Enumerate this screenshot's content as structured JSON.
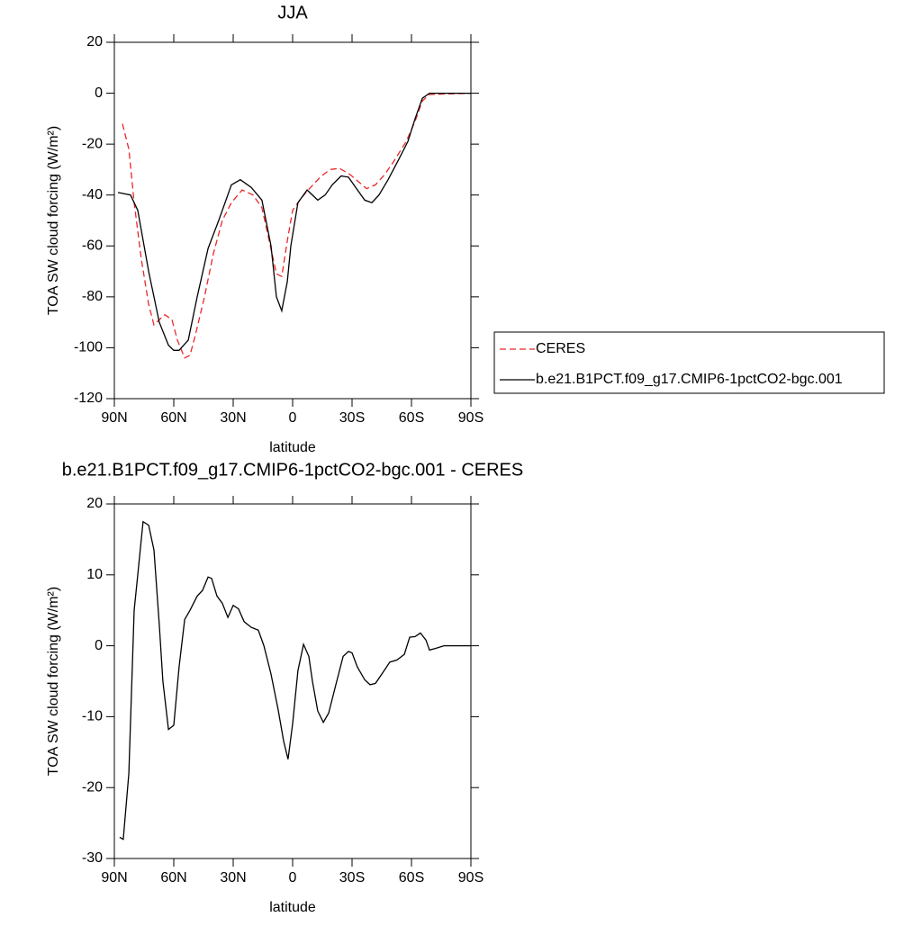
{
  "chart_data": [
    {
      "type": "line",
      "title": "JJA",
      "xlabel": "latitude",
      "ylabel": "TOA SW cloud forcing (W/m²)",
      "xlim": [
        90,
        -90
      ],
      "ylim": [
        -120,
        20
      ],
      "xticks": [
        {
          "value": 90,
          "label": "90N"
        },
        {
          "value": 60,
          "label": "60N"
        },
        {
          "value": 30,
          "label": "30N"
        },
        0,
        {
          "value": -30,
          "label": "30S"
        },
        {
          "value": -60,
          "label": "60S"
        },
        {
          "value": -90,
          "label": "90S"
        }
      ],
      "yticks": [
        20,
        0,
        -20,
        -40,
        -60,
        -80,
        -100,
        -120
      ],
      "legend": "right",
      "series": [
        {
          "name": "CERES",
          "color": "#e8282a",
          "dash": true,
          "x": [
            85.9,
            82.7,
            80,
            76.4,
            72.7,
            70,
            67.3,
            64.5,
            60.9,
            58.2,
            54.5,
            51.8,
            49.1,
            44.5,
            40,
            35.5,
            30.9,
            25.5,
            20,
            15.5,
            11.8,
            8.2,
            5.5,
            2.7,
            0,
            -4.5,
            -9.1,
            -14.5,
            -19.1,
            -23.6,
            -29.1,
            -33.6,
            -37.3,
            -41.8,
            -46.4,
            -50.9,
            -57.3,
            -61.8,
            -65.5,
            -69.1,
            -90
          ],
          "values": [
            -12,
            -22,
            -43,
            -65,
            -83,
            -91,
            -89,
            -87,
            -89,
            -97,
            -104,
            -103,
            -95,
            -80,
            -63,
            -50,
            -43,
            -38,
            -40,
            -45,
            -58,
            -71,
            -72,
            -58,
            -46,
            -41,
            -37,
            -32.5,
            -30,
            -29.5,
            -32,
            -35,
            -37.5,
            -36,
            -32,
            -27,
            -19,
            -11,
            -3,
            -0.5,
            0
          ]
        },
        {
          "name": "b.e21.B1PCT.f09_g17.CMIP6-1pctCO2-bgc.001",
          "color": "#000000",
          "dash": false,
          "x": [
            88.2,
            81.8,
            78.2,
            72.7,
            67.3,
            62.7,
            60,
            57.3,
            52.7,
            48.2,
            42.7,
            37.3,
            30.9,
            26.4,
            20.9,
            15.5,
            10.9,
            8.2,
            5.5,
            2.7,
            0.9,
            -2.7,
            -7.3,
            -12.7,
            -16.4,
            -20,
            -24.5,
            -28.2,
            -31.8,
            -36.4,
            -40,
            -43.6,
            -48.2,
            -53.6,
            -58.2,
            -61.8,
            -65.5,
            -69.1,
            -72.7,
            -77.3,
            -90
          ],
          "values": [
            -39,
            -40,
            -46,
            -70,
            -90,
            -99,
            -101,
            -101,
            -97,
            -80,
            -61,
            -50,
            -36,
            -34,
            -37,
            -42,
            -60,
            -80,
            -85.5,
            -74,
            -60,
            -43,
            -38,
            -42,
            -40,
            -36,
            -32.5,
            -33,
            -37,
            -42,
            -43,
            -40,
            -34,
            -26,
            -19,
            -10,
            -2,
            0,
            0,
            0,
            0
          ]
        }
      ]
    },
    {
      "type": "line",
      "title": "b.e21.B1PCT.f09_g17.CMIP6-1pctCO2-bgc.001 - CERES",
      "xlabel": "latitude",
      "ylabel": "TOA SW cloud forcing (W/m²)",
      "xlim": [
        90,
        -90
      ],
      "ylim": [
        -30,
        20
      ],
      "xticks": [
        {
          "value": 90,
          "label": "90N"
        },
        {
          "value": 60,
          "label": "60N"
        },
        {
          "value": 30,
          "label": "30N"
        },
        0,
        {
          "value": -30,
          "label": "30S"
        },
        {
          "value": -60,
          "label": "60S"
        },
        {
          "value": -90,
          "label": "90S"
        }
      ],
      "yticks": [
        20,
        10,
        0,
        -10,
        -20,
        -30
      ],
      "series": [
        {
          "color": "#000000",
          "dash": false,
          "x": [
            87.3,
            85.5,
            82.7,
            80,
            78.2,
            75.5,
            72.7,
            70,
            67.3,
            65.5,
            62.7,
            60,
            57.3,
            54.5,
            51.8,
            48.2,
            45.5,
            42.7,
            40.9,
            38.2,
            35.5,
            32.7,
            30,
            27.3,
            24.5,
            20.9,
            17.3,
            14.5,
            10.9,
            7.3,
            4.5,
            2.3,
            0,
            -2.7,
            -5.5,
            -8.2,
            -10,
            -12.7,
            -15.5,
            -18.2,
            -21.8,
            -25.5,
            -28.2,
            -30,
            -32.7,
            -36.4,
            -39.1,
            -41.8,
            -45.5,
            -49.1,
            -52.7,
            -56.4,
            -59.1,
            -61.8,
            -64.5,
            -67.3,
            -69.1,
            -71.8,
            -76.4,
            -90
          ],
          "values": [
            -27,
            -27.3,
            -18,
            5,
            10,
            17.5,
            17,
            13.5,
            3,
            -5,
            -11.8,
            -11.2,
            -3,
            3.7,
            5,
            7,
            7.8,
            9.7,
            9.5,
            7,
            6,
            4,
            5.7,
            5.2,
            3.4,
            2.6,
            2.2,
            0,
            -4,
            -9,
            -13.5,
            -16,
            -11,
            -3.5,
            0.2,
            -1.5,
            -5,
            -9.2,
            -10.8,
            -9.5,
            -5.5,
            -1.5,
            -0.8,
            -1,
            -3,
            -4.8,
            -5.5,
            -5.3,
            -3.8,
            -2.3,
            -2,
            -1.2,
            1.2,
            1.3,
            1.8,
            0.8,
            -0.6,
            -0.4,
            0,
            0
          ]
        }
      ]
    }
  ]
}
